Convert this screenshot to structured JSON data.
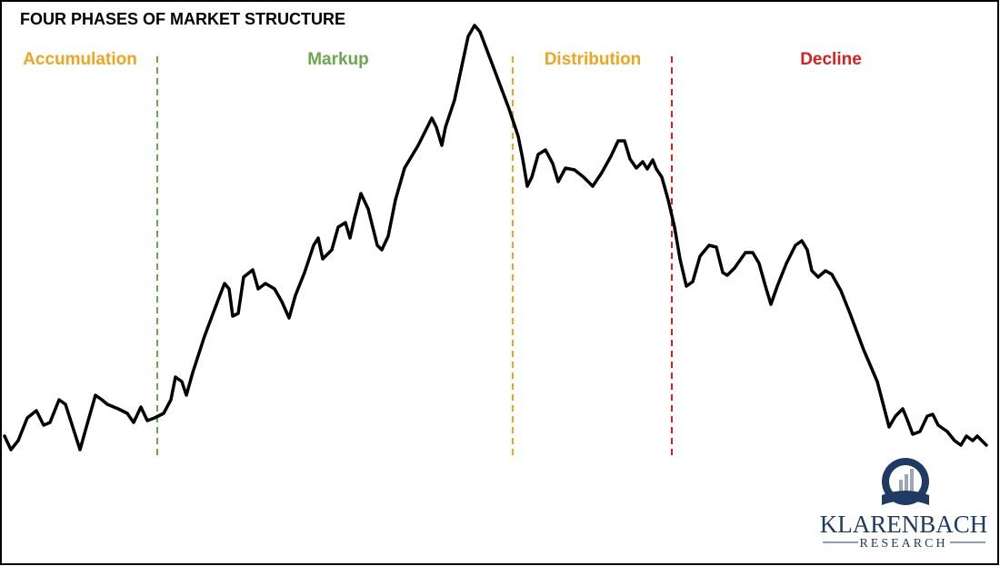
{
  "header": {
    "title": "FOUR PHASES OF MARKET STRUCTURE"
  },
  "phases": [
    {
      "label": "Accumulation"
    },
    {
      "label": "Markup"
    },
    {
      "label": "Distribution"
    },
    {
      "label": "Decline"
    }
  ],
  "logo": {
    "name": "KLARENBACH",
    "subtitle": "RESEARCH"
  }
}
